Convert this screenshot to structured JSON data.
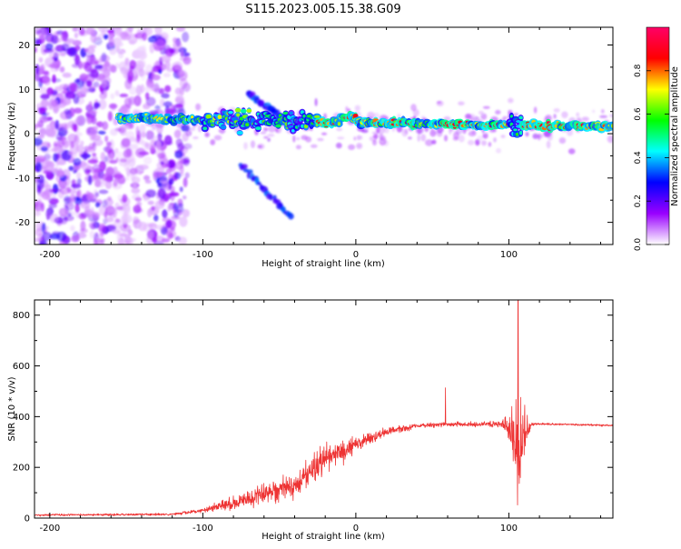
{
  "title": "S115.2023.005.15.38.G09",
  "chart_data": [
    {
      "type": "heatmap",
      "xlabel": "Height of straight line (km)",
      "ylabel": "Frequency (Hz)",
      "xlim": [
        -210,
        168
      ],
      "ylim": [
        -25,
        24
      ],
      "x_ticks": [
        -200,
        -100,
        0,
        100
      ],
      "y_ticks": [
        -20,
        -10,
        0,
        10,
        20
      ],
      "colorbar": {
        "label": "Normalized spectral amplitude",
        "range": [
          0,
          1
        ],
        "ticks": [
          0.0,
          0.2,
          0.4,
          0.6,
          0.8
        ],
        "colors": [
          "#ffffff",
          "#9900ff",
          "#0000ff",
          "#00ffff",
          "#00ff00",
          "#ffff00",
          "#ff0000",
          "#ff0066"
        ]
      },
      "features": [
        {
          "name": "main_band",
          "x_start": -155,
          "x_end": 168,
          "y_start": 3.5,
          "y_end": 1.5,
          "amplitude": 0.9
        },
        {
          "name": "falling_branch",
          "x_start": -75,
          "x_end": -42,
          "y_start": -7,
          "y_end": -19,
          "amplitude": 0.3
        },
        {
          "name": "rising_branch",
          "x_start": -70,
          "x_end": -50,
          "y_start": 9,
          "y_end": 4,
          "amplitude": 0.3
        },
        {
          "name": "scatter_zone",
          "x_start": -210,
          "x_end": -110,
          "y_start": -25,
          "y_end": 24,
          "amplitude": 0.2
        }
      ]
    },
    {
      "type": "line",
      "xlabel": "Height of straight line (km)",
      "ylabel": "SNR (10 * v/v)",
      "xlim": [
        -210,
        168
      ],
      "ylim": [
        0,
        860
      ],
      "x_ticks": [
        -200,
        -100,
        0,
        100
      ],
      "y_ticks": [
        0,
        200,
        400,
        600,
        800
      ],
      "color": "#ee3333",
      "envelope_x": [
        -210,
        -120,
        -100,
        -80,
        -60,
        -40,
        -30,
        -20,
        0,
        20,
        40,
        60,
        80,
        95,
        100,
        103,
        106,
        108,
        110,
        115,
        130,
        168
      ],
      "envelope_mean": [
        12,
        15,
        30,
        60,
        100,
        130,
        180,
        230,
        290,
        340,
        365,
        370,
        370,
        370,
        360,
        300,
        250,
        300,
        330,
        370,
        370,
        365
      ],
      "envelope_noise": [
        6,
        6,
        12,
        40,
        60,
        70,
        90,
        80,
        50,
        25,
        15,
        12,
        15,
        25,
        60,
        200,
        300,
        250,
        150,
        8,
        6,
        6
      ],
      "peak": {
        "x": 106,
        "y": 860
      }
    }
  ]
}
